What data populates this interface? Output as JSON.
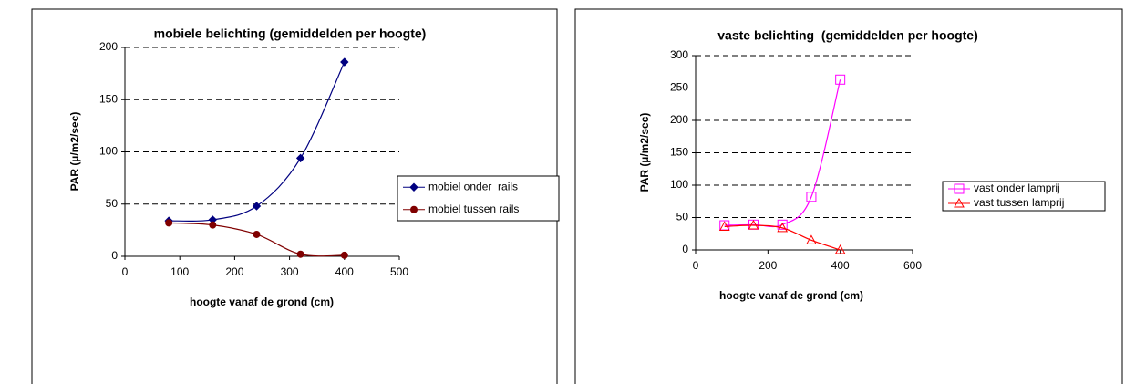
{
  "chart_data": [
    {
      "type": "line",
      "title": "mobiele belichting (gemiddelden per hoogte)",
      "xlabel": "hoogte vanaf de grond (cm)",
      "ylabel": "PAR (µ/m2/sec)",
      "x": [
        80,
        160,
        240,
        320,
        400
      ],
      "series": [
        {
          "name": "mobiel onder  rails",
          "color": "#000080",
          "marker": "diamond",
          "values": [
            34,
            35,
            48,
            94,
            186
          ]
        },
        {
          "name": "mobiel tussen rails",
          "color": "#800000",
          "marker": "circle",
          "values": [
            32,
            30,
            21,
            2,
            1
          ]
        }
      ],
      "xlim": [
        0,
        500
      ],
      "xticks": [
        0,
        100,
        200,
        300,
        400,
        500
      ],
      "ylim": [
        0,
        200
      ],
      "yticks": [
        0,
        50,
        100,
        150,
        200
      ],
      "grid": true,
      "smooth": true,
      "legend": "right"
    },
    {
      "type": "line",
      "title": "vaste belichting  (gemiddelden per hoogte)",
      "xlabel": "hoogte vanaf de grond (cm)",
      "ylabel": "PAR (µ/m2/sec)",
      "x": [
        80,
        160,
        240,
        320,
        400
      ],
      "series": [
        {
          "name": "vast onder lamprij",
          "color": "#FF00FF",
          "marker": "square",
          "values": [
            38,
            39,
            39,
            82,
            263
          ]
        },
        {
          "name": "vast tussen lamprij",
          "color": "#FF0000",
          "marker": "triangle",
          "values": [
            36,
            38,
            34,
            15,
            0
          ]
        }
      ],
      "xlim": [
        0,
        600
      ],
      "xticks": [
        0,
        200,
        400,
        600
      ],
      "ylim": [
        0,
        300
      ],
      "yticks": [
        0,
        50,
        100,
        150,
        200,
        250,
        300
      ],
      "grid": true,
      "smooth": true,
      "legend": "right"
    }
  ]
}
